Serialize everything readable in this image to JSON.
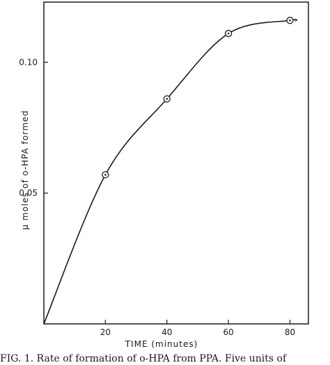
{
  "chart_data": {
    "type": "line",
    "title": "",
    "xlabel": "TIME   (minutes)",
    "ylabel": "µ moles  of   o-HPA   formed",
    "xlim": [
      0,
      86
    ],
    "ylim": [
      0,
      0.123
    ],
    "x_ticks": [
      "20",
      "40",
      "60",
      "80"
    ],
    "y_ticks": [
      "0.05",
      "0.10"
    ],
    "grid": false,
    "series": [
      {
        "points": [
          {
            "x": 0,
            "y": 0
          },
          {
            "x": 20,
            "y": 0.057
          },
          {
            "x": 40,
            "y": 0.086
          },
          {
            "x": 60,
            "y": 0.111
          },
          {
            "x": 80,
            "y": 0.116
          }
        ],
        "marker": "circle-dot",
        "color": "#1a1a1a"
      }
    ]
  },
  "caption": {
    "text": "FIG. 1. Rate of formation of o-HPA from PPA. Five units of"
  }
}
